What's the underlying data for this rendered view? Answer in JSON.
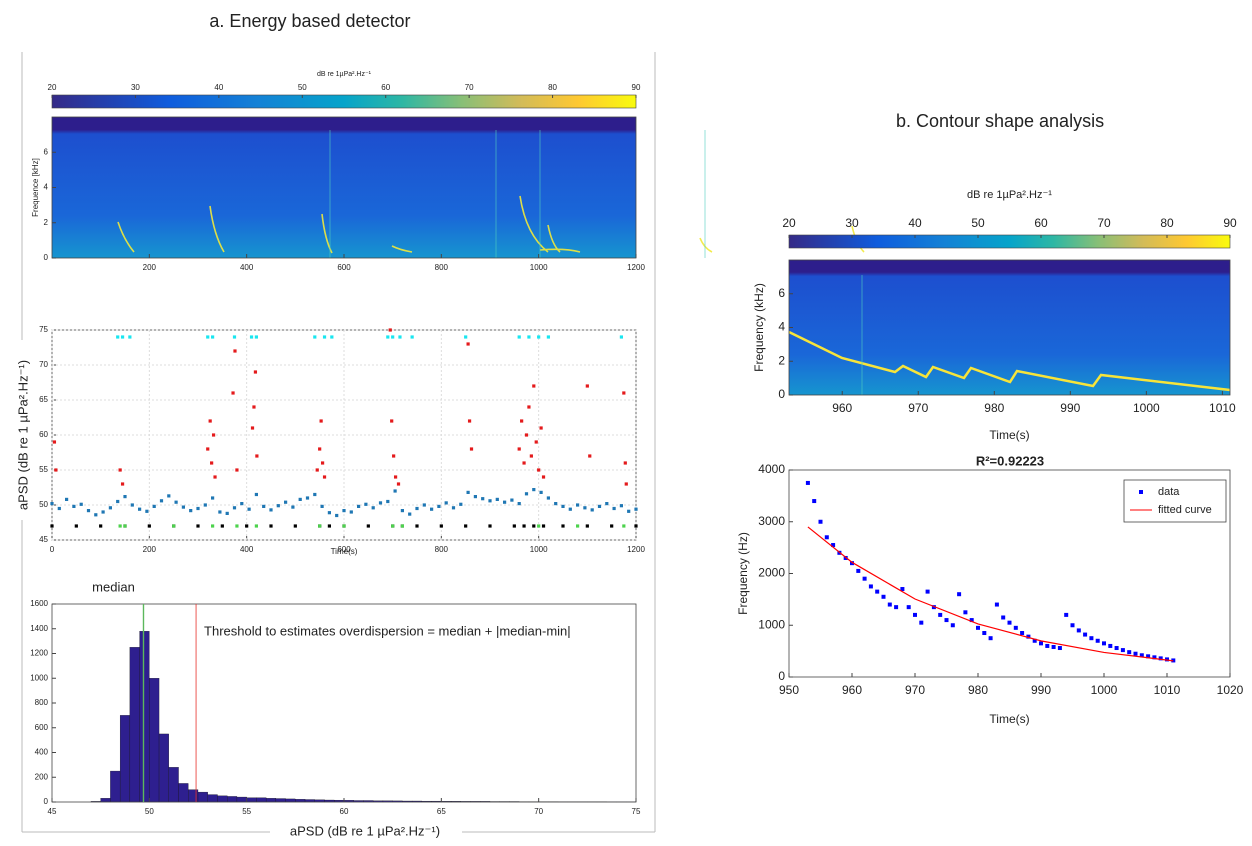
{
  "chart_data": [
    {
      "type": "spectrogram",
      "title": "a. Energy based detector",
      "colorbar_label": "dB re 1µPa².Hz⁻¹",
      "colorbar_lim": [
        20,
        90
      ],
      "colorbar_ticks": [
        20,
        30,
        40,
        50,
        60,
        70,
        80,
        90
      ],
      "ylabel": "Frequence [kHz]",
      "xlim": [
        0,
        1200
      ],
      "xticks": [
        200,
        400,
        600,
        800,
        1000,
        1200
      ],
      "ylim": [
        0,
        8
      ],
      "yticks": [
        0,
        2,
        4,
        6
      ]
    },
    {
      "type": "scatter",
      "ylabel": "aPSD (dB re 1 µPa².Hz⁻¹)",
      "xlabel": "Time(s)",
      "xlim": [
        0,
        1200
      ],
      "xticks": [
        0,
        200,
        400,
        600,
        800,
        1000,
        1200
      ],
      "ylim": [
        45,
        75
      ],
      "yticks": [
        45,
        50,
        55,
        60,
        65,
        70,
        75
      ],
      "grid": true,
      "series": [
        {
          "color": "#1f77b4",
          "x": [
            0,
            15,
            30,
            45,
            60,
            75,
            90,
            105,
            120,
            135,
            150,
            165,
            180,
            195,
            210,
            225,
            240,
            255,
            270,
            285,
            300,
            315,
            330,
            345,
            360,
            375,
            390,
            405,
            420,
            435,
            450,
            465,
            480,
            495,
            510,
            525,
            540,
            555,
            570,
            585,
            600,
            615,
            630,
            645,
            660,
            675,
            690,
            705,
            720,
            735,
            750,
            765,
            780,
            795,
            810,
            825,
            840,
            855,
            870,
            885,
            900,
            915,
            930,
            945,
            960,
            975,
            990,
            1005,
            1020,
            1035,
            1050,
            1065,
            1080,
            1095,
            1110,
            1125,
            1140,
            1155,
            1170,
            1185,
            1200
          ],
          "values": [
            50.2,
            49.5,
            50.8,
            49.8,
            50.1,
            49.2,
            48.6,
            49.0,
            49.6,
            50.5,
            51.2,
            50.0,
            49.4,
            49.1,
            49.8,
            50.6,
            51.3,
            50.4,
            49.7,
            49.2,
            49.5,
            50.0,
            51.0,
            49.0,
            48.8,
            49.6,
            50.2,
            49.4,
            51.5,
            49.8,
            49.3,
            49.9,
            50.4,
            49.7,
            50.8,
            51.0,
            51.5,
            49.8,
            48.9,
            48.5,
            49.2,
            49.0,
            49.8,
            50.1,
            49.6,
            50.3,
            50.5,
            52.0,
            49.2,
            48.7,
            49.5,
            50.0,
            49.4,
            49.8,
            50.3,
            49.6,
            50.1,
            51.8,
            51.2,
            50.9,
            50.6,
            50.8,
            50.4,
            50.7,
            50.2,
            51.6,
            52.2,
            51.8,
            51.0,
            50.2,
            49.8,
            49.4,
            50.0,
            49.6,
            49.3,
            49.8,
            50.2,
            49.5,
            49.9,
            49.1,
            49.4
          ]
        },
        {
          "color": "#e41a1c",
          "x": [
            5,
            8,
            140,
            145,
            320,
            325,
            328,
            332,
            335,
            372,
            376,
            380,
            412,
            415,
            418,
            421,
            545,
            550,
            553,
            556,
            560,
            695,
            698,
            702,
            706,
            712,
            855,
            858,
            862,
            960,
            965,
            970,
            975,
            980,
            985,
            990,
            995,
            1000,
            1005,
            1010,
            1100,
            1105,
            1175,
            1178,
            1180
          ],
          "values": [
            59,
            55,
            55,
            53,
            58,
            62,
            56,
            60,
            54,
            66,
            72,
            55,
            61,
            64,
            69,
            57,
            55,
            58,
            62,
            56,
            54,
            75,
            62,
            57,
            54,
            53,
            73,
            62,
            58,
            58,
            62,
            56,
            60,
            64,
            57,
            67,
            59,
            55,
            61,
            54,
            67,
            57,
            66,
            56,
            53
          ]
        },
        {
          "color": "#19e6f0",
          "x": [
            135,
            145,
            160,
            320,
            330,
            375,
            410,
            420,
            540,
            560,
            575,
            690,
            700,
            715,
            740,
            850,
            960,
            980,
            1000,
            1020,
            1170
          ],
          "values": [
            74,
            74,
            74,
            74,
            74,
            74,
            74,
            74,
            74,
            74,
            74,
            74,
            74,
            74,
            74,
            74,
            74,
            74,
            74,
            74,
            74
          ]
        },
        {
          "color": "#000000",
          "x": [
            0,
            50,
            100,
            150,
            200,
            250,
            300,
            350,
            400,
            450,
            500,
            550,
            570,
            600,
            650,
            700,
            720,
            750,
            800,
            850,
            900,
            950,
            970,
            990,
            1010,
            1050,
            1100,
            1150,
            1200
          ],
          "values": [
            47,
            47,
            47,
            47,
            47,
            47,
            47,
            47,
            47,
            47,
            47,
            47,
            47,
            47,
            47,
            47,
            47,
            47,
            47,
            47,
            47,
            47,
            47,
            47,
            47,
            47,
            47,
            47,
            47
          ]
        },
        {
          "color": "#4dd34d",
          "x": [
            140,
            150,
            250,
            330,
            380,
            420,
            550,
            600,
            700,
            720,
            1000,
            1080,
            1175
          ],
          "values": [
            47,
            47,
            47,
            47,
            47,
            47,
            47,
            47,
            47,
            47,
            47,
            47,
            47
          ]
        }
      ]
    },
    {
      "type": "histogram",
      "xlabel": "aPSD (dB re 1 µPa².Hz⁻¹)",
      "color": "#2e1f8f",
      "bins": [
        47,
        47.5,
        48,
        48.5,
        49,
        49.5,
        50,
        50.5,
        51,
        51.5,
        52,
        52.5,
        53,
        53.5,
        54,
        54.5,
        55,
        55.5,
        56,
        56.5,
        57,
        57.5,
        58,
        58.5,
        59,
        59.5,
        60,
        60.5,
        61,
        61.5,
        62,
        62.5,
        63,
        63.5,
        64,
        64.5,
        65,
        65.5,
        66,
        66.5,
        67,
        67.5,
        68,
        68.5,
        69,
        69.5,
        70,
        70.5,
        71,
        71.5,
        72,
        72.5,
        73,
        73.5,
        74,
        74.5,
        75
      ],
      "counts": [
        5,
        30,
        250,
        700,
        1250,
        1380,
        1000,
        550,
        280,
        150,
        100,
        80,
        60,
        50,
        45,
        40,
        35,
        35,
        30,
        28,
        25,
        22,
        20,
        18,
        16,
        15,
        14,
        12,
        12,
        10,
        10,
        9,
        8,
        8,
        7,
        7,
        6,
        6,
        5,
        5,
        5,
        4,
        4,
        4,
        3,
        3,
        3,
        3,
        2,
        2,
        2,
        2,
        2,
        1,
        1,
        1
      ],
      "xlim": [
        45,
        75
      ],
      "xticks": [
        45,
        50,
        55,
        60,
        65,
        70,
        75
      ],
      "ylim": [
        0,
        1600
      ],
      "yticks": [
        0,
        200,
        400,
        600,
        800,
        1000,
        1200,
        1400,
        1600
      ],
      "annotations": [
        {
          "text": "median",
          "x": 49.7,
          "color": "#5cb85c"
        },
        {
          "text": "Threshold to estimates overdispersion = median + |median-min|",
          "x": 52.4,
          "color": "#e8302a"
        }
      ]
    },
    {
      "type": "spectrogram",
      "title": "b. Contour shape analysis",
      "colorbar_label": "dB re 1µPa².Hz⁻¹",
      "colorbar_lim": [
        20,
        90
      ],
      "colorbar_ticks": [
        20,
        30,
        40,
        50,
        60,
        70,
        80,
        90
      ],
      "ylabel": "Frequency  (kHz)",
      "xlabel": "Time(s)",
      "xlim": [
        953,
        1011
      ],
      "xticks": [
        960,
        970,
        980,
        990,
        1000,
        1010
      ],
      "ylim": [
        0,
        8
      ],
      "yticks": [
        0,
        2,
        4,
        6
      ]
    },
    {
      "type": "scatter",
      "title": "R²=0.92223",
      "ylabel": "Frequency  (Hz)",
      "xlabel": "Time(s)",
      "xlim": [
        950,
        1020
      ],
      "xticks": [
        950,
        960,
        970,
        980,
        990,
        1000,
        1010,
        1020
      ],
      "ylim": [
        0,
        4000
      ],
      "yticks": [
        0,
        1000,
        2000,
        3000,
        4000
      ],
      "legend": "upper right",
      "series": [
        {
          "name": "data",
          "color": "#0000ff",
          "style": "points",
          "x": [
            953,
            954,
            955,
            956,
            957,
            958,
            959,
            960,
            961,
            962,
            963,
            964,
            965,
            966,
            967,
            968,
            969,
            970,
            971,
            972,
            973,
            974,
            975,
            976,
            977,
            978,
            979,
            980,
            981,
            982,
            983,
            984,
            985,
            986,
            987,
            988,
            989,
            990,
            991,
            992,
            993,
            994,
            995,
            996,
            997,
            998,
            999,
            1000,
            1001,
            1002,
            1003,
            1004,
            1005,
            1006,
            1007,
            1008,
            1009,
            1010,
            1011
          ],
          "values": [
            3750,
            3400,
            3000,
            2700,
            2550,
            2400,
            2300,
            2200,
            2050,
            1900,
            1750,
            1650,
            1550,
            1400,
            1350,
            1700,
            1350,
            1200,
            1050,
            1650,
            1350,
            1200,
            1100,
            1000,
            1600,
            1250,
            1100,
            950,
            850,
            750,
            1400,
            1150,
            1050,
            950,
            850,
            780,
            700,
            650,
            600,
            580,
            560,
            1200,
            1000,
            900,
            820,
            750,
            700,
            650,
            600,
            560,
            520,
            480,
            450,
            420,
            400,
            380,
            360,
            340,
            320
          ]
        },
        {
          "name": "fitted curve",
          "color": "#ff0000",
          "style": "line",
          "x": [
            953,
            960,
            970,
            980,
            990,
            1000,
            1011
          ],
          "values": [
            2900,
            2216,
            1507,
            1026,
            698,
            475,
            312
          ]
        }
      ]
    }
  ]
}
